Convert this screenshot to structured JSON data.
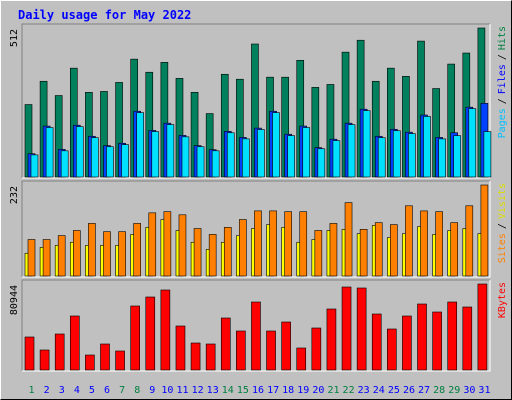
{
  "chart_data": [
    {
      "type": "bar",
      "title": "Daily usage for May 2022",
      "ylim": [
        0,
        512
      ],
      "yticks": [
        512
      ],
      "legend_separator": "/",
      "series": [
        {
          "name": "Hits",
          "color": "#00805c",
          "text_color": "#008040",
          "values": [
            249,
            329,
            280,
            374,
            291,
            294,
            325,
            405,
            360,
            394,
            339,
            291,
            218,
            353,
            336,
            457,
            343,
            343,
            401,
            308,
            318,
            429,
            470,
            329,
            374,
            346,
            467,
            304,
            388,
            426,
            512
          ]
        },
        {
          "name": "Files",
          "color": "#0040ff",
          "text_color": "#0000ff",
          "values": [
            80,
            175,
            95,
            178,
            140,
            108,
            116,
            226,
            160,
            185,
            143,
            108,
            94,
            157,
            136,
            168,
            226,
            147,
            175,
            101,
            130,
            185,
            233,
            140,
            164,
            154,
            213,
            136,
            152,
            240,
            253
          ]
        },
        {
          "name": "Pages",
          "color": "#00e0ff",
          "text_color": "#00c0ff",
          "values": [
            76,
            170,
            90,
            173,
            135,
            104,
            111,
            221,
            156,
            180,
            138,
            104,
            90,
            152,
            131,
            163,
            221,
            142,
            170,
            97,
            125,
            180,
            228,
            135,
            159,
            149,
            208,
            131,
            142,
            235,
            156
          ]
        }
      ]
    },
    {
      "type": "bar",
      "ylim": [
        0,
        232
      ],
      "yticks": [
        232
      ],
      "legend_separator": "/",
      "series": [
        {
          "name": "Visits",
          "color": "#ffff00",
          "text_color": "#e0e000",
          "values": [
            58,
            73,
            78,
            86,
            78,
            78,
            78,
            106,
            124,
            144,
            116,
            86,
            68,
            86,
            103,
            121,
            131,
            124,
            86,
            93,
            116,
            119,
            108,
            129,
            98,
            108,
            126,
            106,
            116,
            121,
            108
          ]
        },
        {
          "name": "Sites",
          "color": "#ff8000",
          "text_color": "#ff8000",
          "values": [
            93,
            93,
            103,
            116,
            134,
            113,
            113,
            134,
            161,
            164,
            156,
            121,
            106,
            124,
            144,
            166,
            166,
            164,
            164,
            116,
            134,
            187,
            119,
            136,
            131,
            179,
            166,
            164,
            136,
            179,
            232
          ]
        }
      ]
    },
    {
      "type": "bar",
      "ylim": [
        0,
        80944
      ],
      "yticks": [
        80944
      ],
      "categories": [
        "1",
        "2",
        "3",
        "4",
        "5",
        "6",
        "7",
        "8",
        "9",
        "10",
        "11",
        "12",
        "13",
        "14",
        "15",
        "16",
        "17",
        "18",
        "19",
        "20",
        "21",
        "22",
        "23",
        "24",
        "25",
        "26",
        "27",
        "28",
        "29",
        "30",
        "31"
      ],
      "category_colors": [
        "#008040",
        "#0000ff",
        "#0000ff",
        "#0000ff",
        "#0000ff",
        "#0000ff",
        "#008040",
        "#008040",
        "#0000ff",
        "#0000ff",
        "#0000ff",
        "#0000ff",
        "#0000ff",
        "#008040",
        "#008040",
        "#0000ff",
        "#0000ff",
        "#0000ff",
        "#0000ff",
        "#0000ff",
        "#008040",
        "#008040",
        "#0000ff",
        "#0000ff",
        "#0000ff",
        "#0000ff",
        "#0000ff",
        "#008040",
        "#008040",
        "#0000ff",
        "#0000ff"
      ],
      "series": [
        {
          "name": "KBytes",
          "color": "#ff0000",
          "text_color": "#ff0000",
          "values": [
            31060,
            18823,
            33883,
            50824,
            14118,
            24471,
            17882,
            60237,
            68708,
            75296,
            41413,
            25412,
            24471,
            48942,
            36706,
            64002,
            36706,
            45177,
            20706,
            39530,
            57413,
            78120,
            77179,
            52707,
            38589,
            50824,
            62119,
            54590,
            64002,
            59296,
            80944
          ]
        }
      ]
    }
  ]
}
